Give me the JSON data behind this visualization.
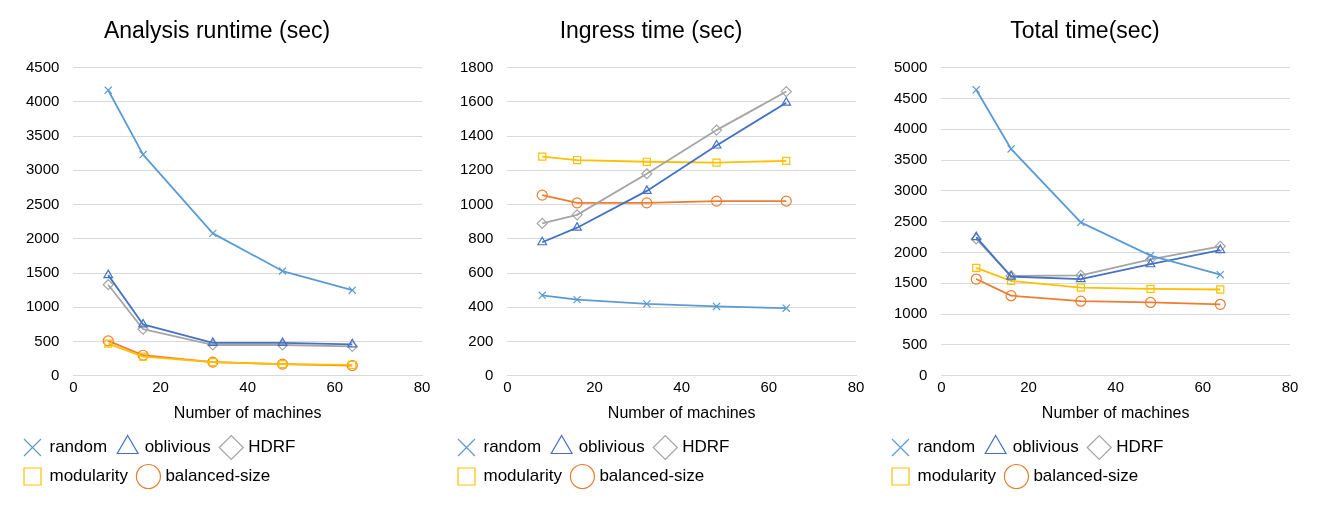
{
  "chart_data": [
    {
      "type": "line",
      "title": "Analysis runtime (sec)",
      "xlabel": "Number of machines",
      "x": [
        8,
        16,
        32,
        48,
        64
      ],
      "xlim": [
        0,
        80
      ],
      "xticks": [
        0,
        20,
        40,
        60,
        80
      ],
      "ylim": [
        0,
        4500
      ],
      "yticks": [
        0,
        500,
        1000,
        1500,
        2000,
        2500,
        3000,
        3500,
        4000,
        4500
      ],
      "grid": "y",
      "legend": "bottom",
      "series": [
        {
          "name": "random",
          "color": "#5b9bd5",
          "marker": "cross",
          "values": [
            4170,
            3230,
            2080,
            1530,
            1250
          ]
        },
        {
          "name": "oblivious",
          "color": "#4472c4",
          "marker": "triangle",
          "values": [
            1470,
            750,
            480,
            480,
            460
          ]
        },
        {
          "name": "HDRF",
          "color": "#a5a5a5",
          "marker": "diamond",
          "values": [
            1330,
            680,
            450,
            450,
            430
          ]
        },
        {
          "name": "modularity",
          "color": "#ffc000",
          "marker": "square",
          "values": [
            470,
            280,
            200,
            170,
            160
          ]
        },
        {
          "name": "balanced-size",
          "color": "#ed7d31",
          "marker": "circle",
          "values": [
            510,
            300,
            200,
            170,
            150
          ]
        }
      ]
    },
    {
      "type": "line",
      "title": "Ingress time (sec)",
      "xlabel": "Number of machines",
      "x": [
        8,
        16,
        32,
        48,
        64
      ],
      "xlim": [
        0,
        80
      ],
      "xticks": [
        0,
        20,
        40,
        60,
        80
      ],
      "ylim": [
        0,
        1800
      ],
      "yticks": [
        0,
        200,
        400,
        600,
        800,
        1000,
        1200,
        1400,
        1600,
        1800
      ],
      "grid": "y",
      "legend": "bottom",
      "series": [
        {
          "name": "random",
          "color": "#5b9bd5",
          "marker": "cross",
          "values": [
            470,
            445,
            420,
            405,
            395
          ]
        },
        {
          "name": "oblivious",
          "color": "#4472c4",
          "marker": "triangle",
          "values": [
            780,
            865,
            1080,
            1345,
            1595
          ]
        },
        {
          "name": "HDRF",
          "color": "#a5a5a5",
          "marker": "diamond",
          "values": [
            890,
            940,
            1180,
            1435,
            1660
          ]
        },
        {
          "name": "modularity",
          "color": "#ffc000",
          "marker": "square",
          "values": [
            1280,
            1260,
            1250,
            1245,
            1255
          ]
        },
        {
          "name": "balanced-size",
          "color": "#ed7d31",
          "marker": "circle",
          "values": [
            1055,
            1010,
            1010,
            1020,
            1020
          ]
        }
      ]
    },
    {
      "type": "line",
      "title": "Total time(sec)",
      "xlabel": "Number of machines",
      "x": [
        8,
        16,
        32,
        48,
        64
      ],
      "xlim": [
        0,
        80
      ],
      "xticks": [
        0,
        20,
        40,
        60,
        80
      ],
      "ylim": [
        0,
        5000
      ],
      "yticks": [
        0,
        500,
        1000,
        1500,
        2000,
        2500,
        3000,
        3500,
        4000,
        4500,
        5000
      ],
      "grid": "y",
      "legend": "bottom",
      "series": [
        {
          "name": "random",
          "color": "#5b9bd5",
          "marker": "cross",
          "values": [
            4640,
            3680,
            2490,
            1950,
            1640
          ]
        },
        {
          "name": "oblivious",
          "color": "#4472c4",
          "marker": "triangle",
          "values": [
            2250,
            1610,
            1570,
            1810,
            2040
          ]
        },
        {
          "name": "HDRF",
          "color": "#a5a5a5",
          "marker": "diamond",
          "values": [
            2220,
            1620,
            1630,
            1890,
            2100
          ]
        },
        {
          "name": "modularity",
          "color": "#ffc000",
          "marker": "square",
          "values": [
            1750,
            1540,
            1430,
            1410,
            1400
          ]
        },
        {
          "name": "balanced-size",
          "color": "#ed7d31",
          "marker": "circle",
          "values": [
            1570,
            1300,
            1210,
            1190,
            1160
          ]
        }
      ]
    }
  ]
}
